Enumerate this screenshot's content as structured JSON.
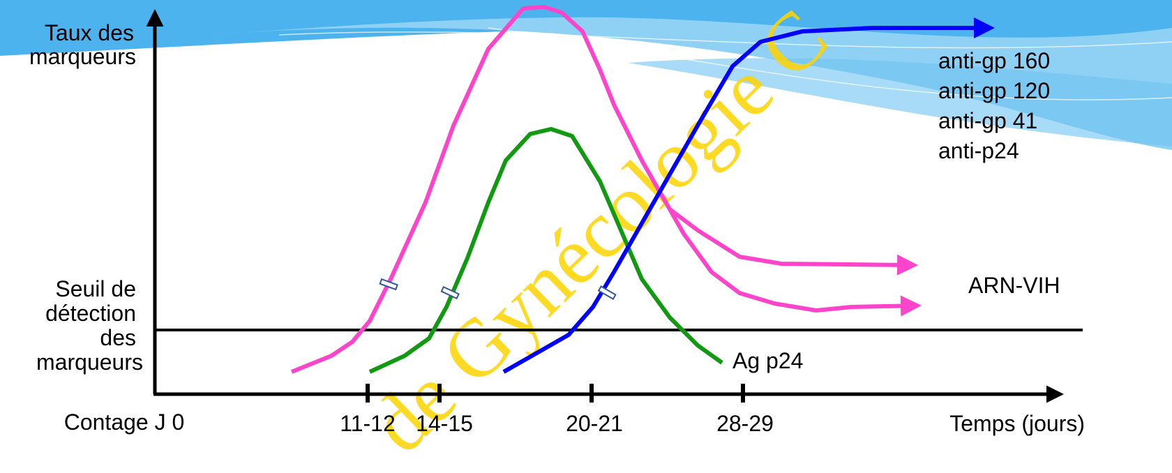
{
  "y_axis_label": [
    "Taux des",
    "marqueurs"
  ],
  "threshold_label": [
    "Seuil de",
    "détection",
    "des",
    "marqueurs"
  ],
  "x_labels": [
    "Contage J 0",
    "11-12",
    "14-15",
    "20-21",
    "28-29",
    "Temps (jours)"
  ],
  "antibody_labels": [
    "anti-gp 160",
    "anti-gp 120",
    "anti-gp 41",
    "anti-p24"
  ],
  "rna_label": "ARN-VIH",
  "antigen_label": "Ag p24",
  "watermark": "de Gynécologie C"
}
